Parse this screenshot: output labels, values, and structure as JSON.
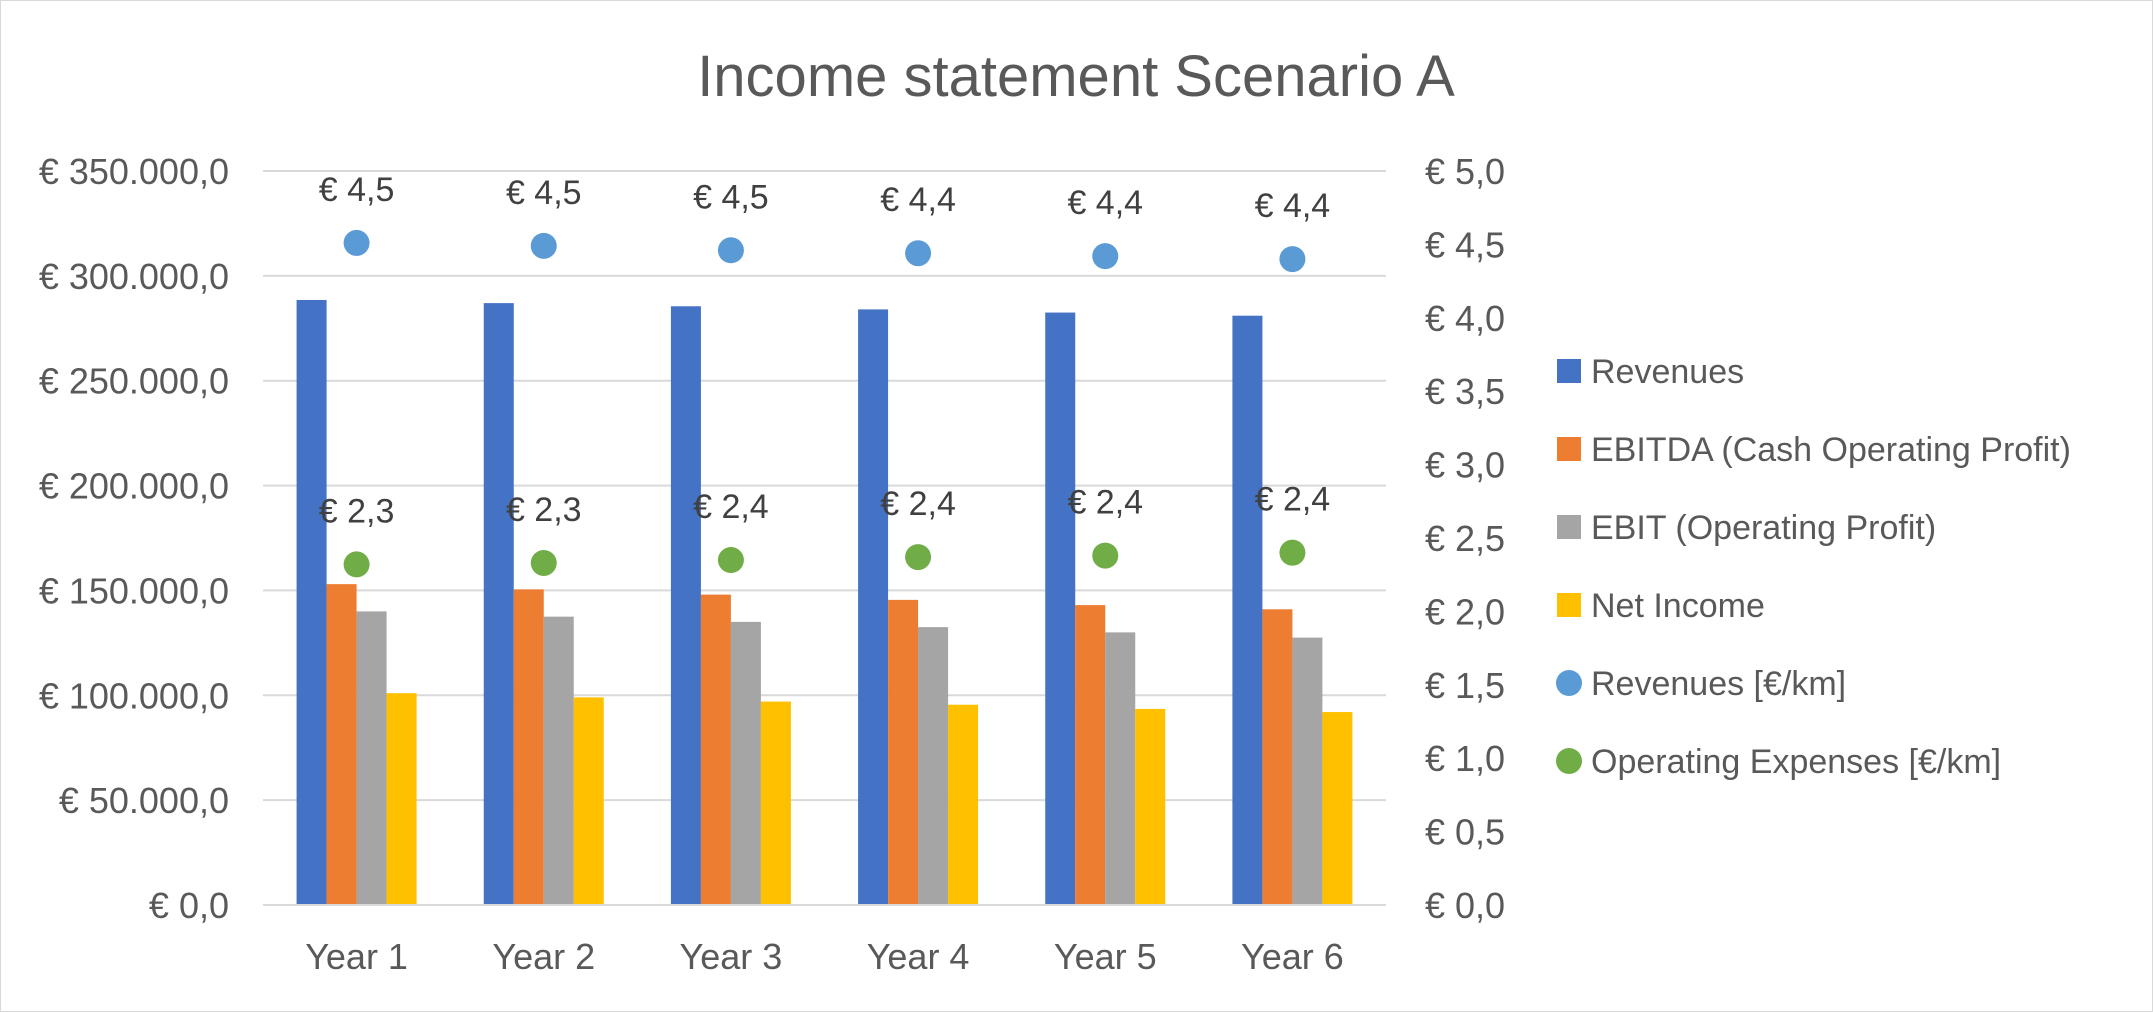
{
  "chart_data": {
    "type": "bar",
    "title": "Income statement Scenario A",
    "categories": [
      "Year 1",
      "Year 2",
      "Year 3",
      "Year 4",
      "Year 5",
      "Year 6"
    ],
    "ylim": [
      0,
      350000
    ],
    "y_ticks": [
      "€ 0,0",
      "€ 50.000,0",
      "€ 100.000,0",
      "€ 150.000,0",
      "€ 200.000,0",
      "€ 250.000,0",
      "€ 300.000,0",
      "€ 350.000,0"
    ],
    "y2lim": [
      0,
      5
    ],
    "y2_ticks": [
      "€ 0,0",
      "€ 0,5",
      "€ 1,0",
      "€ 1,5",
      "€ 2,0",
      "€ 2,5",
      "€ 3,0",
      "€ 3,5",
      "€ 4,0",
      "€ 4,5",
      "€ 5,0"
    ],
    "grid": true,
    "legend_position": "right",
    "series": [
      {
        "name": "Revenues",
        "kind": "bar",
        "axis": "left",
        "color": "#4472C4",
        "values": [
          288500,
          287000,
          285500,
          284000,
          282500,
          281000
        ]
      },
      {
        "name": "EBITDA (Cash Operating Profit)",
        "kind": "bar",
        "axis": "left",
        "color": "#ED7D31",
        "values": [
          153000,
          150500,
          148000,
          145500,
          143000,
          141000
        ]
      },
      {
        "name": "EBIT (Operating Profit)",
        "kind": "bar",
        "axis": "left",
        "color": "#A5A5A5",
        "values": [
          140000,
          137500,
          135000,
          132500,
          130000,
          127500
        ]
      },
      {
        "name": "Net Income",
        "kind": "bar",
        "axis": "left",
        "color": "#FFC000",
        "values": [
          101000,
          99000,
          97000,
          95500,
          93500,
          92000
        ]
      },
      {
        "name": "Revenues [€/km]",
        "kind": "scatter",
        "axis": "right",
        "color": "#5B9BD5",
        "values": [
          4.51,
          4.49,
          4.46,
          4.44,
          4.42,
          4.4
        ],
        "labels": [
          "€ 4,5",
          "€ 4,5",
          "€ 4,5",
          "€ 4,4",
          "€ 4,4",
          "€ 4,4"
        ]
      },
      {
        "name": "Operating Expenses [€/km]",
        "kind": "scatter",
        "axis": "right",
        "color": "#70AD47",
        "values": [
          2.32,
          2.33,
          2.35,
          2.37,
          2.38,
          2.4
        ],
        "labels": [
          "€ 2,3",
          "€ 2,3",
          "€ 2,4",
          "€ 2,4",
          "€ 2,4",
          "€ 2,4"
        ]
      }
    ]
  }
}
